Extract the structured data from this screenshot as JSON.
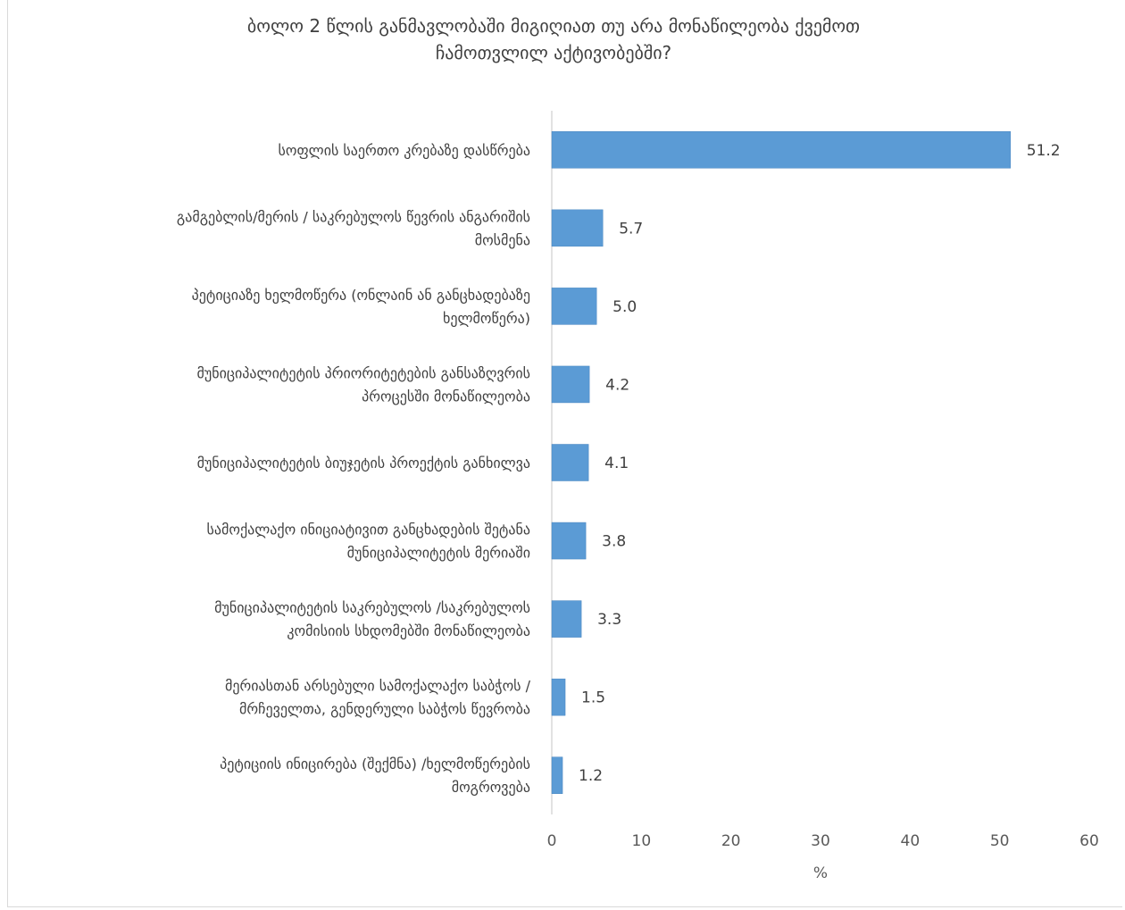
{
  "chart_data": {
    "type": "bar",
    "orientation": "horizontal",
    "title_lines": [
      "ბოლო 2 წლის განმავლობაში მიგიღიათ თუ არა მონაწილეობა ქვემოთ",
      "ჩამოთვლილ აქტივობებში?"
    ],
    "categories": [
      [
        "სოფლის საერთო კრებაზე დასწრება"
      ],
      [
        "გამგებლის/მერის / საკრებულოს წევრის ანგარიშის",
        "მოსმენა"
      ],
      [
        "პეტიციაზე ხელმოწერა (ონლაინ ან განცხადებაზე",
        "ხელმოწერა)"
      ],
      [
        "მუნიციპალიტეტის პრიორიტეტების განსაზღვრის",
        "პროცესში მონაწილეობა"
      ],
      [
        "მუნიციპალიტეტის  ბიუჯეტის პროექტის განხილვა"
      ],
      [
        "სამოქალაქო ინიციატივით განცხადების შეტანა",
        "მუნიციპალიტეტის მერიაში"
      ],
      [
        "მუნიციპალიტეტის საკრებულოს /საკრებულოს",
        "კომისიის სხდომებში მონაწილეობა"
      ],
      [
        "მერიასთან არსებული სამოქალაქო საბჭოს  /",
        "მრჩეველთა, გენდერული საბჭოს წევრობა"
      ],
      [
        "პეტიციის ინიცირება (შექმნა) /ხელმოწერების",
        "მოგროვება"
      ]
    ],
    "values": [
      51.2,
      5.7,
      5.0,
      4.2,
      4.1,
      3.8,
      3.3,
      1.5,
      1.2
    ],
    "value_labels": [
      "51.2",
      "5.7",
      "5.0",
      "4.2",
      "4.1",
      "3.8",
      "3.3",
      "1.5",
      "1.2"
    ],
    "xlim": [
      0,
      60
    ],
    "xticks": [
      "0",
      "10",
      "20",
      "30",
      "40",
      "50",
      "60"
    ],
    "xlabel": "%",
    "bar_color": "#5b9bd5",
    "grid": false
  }
}
